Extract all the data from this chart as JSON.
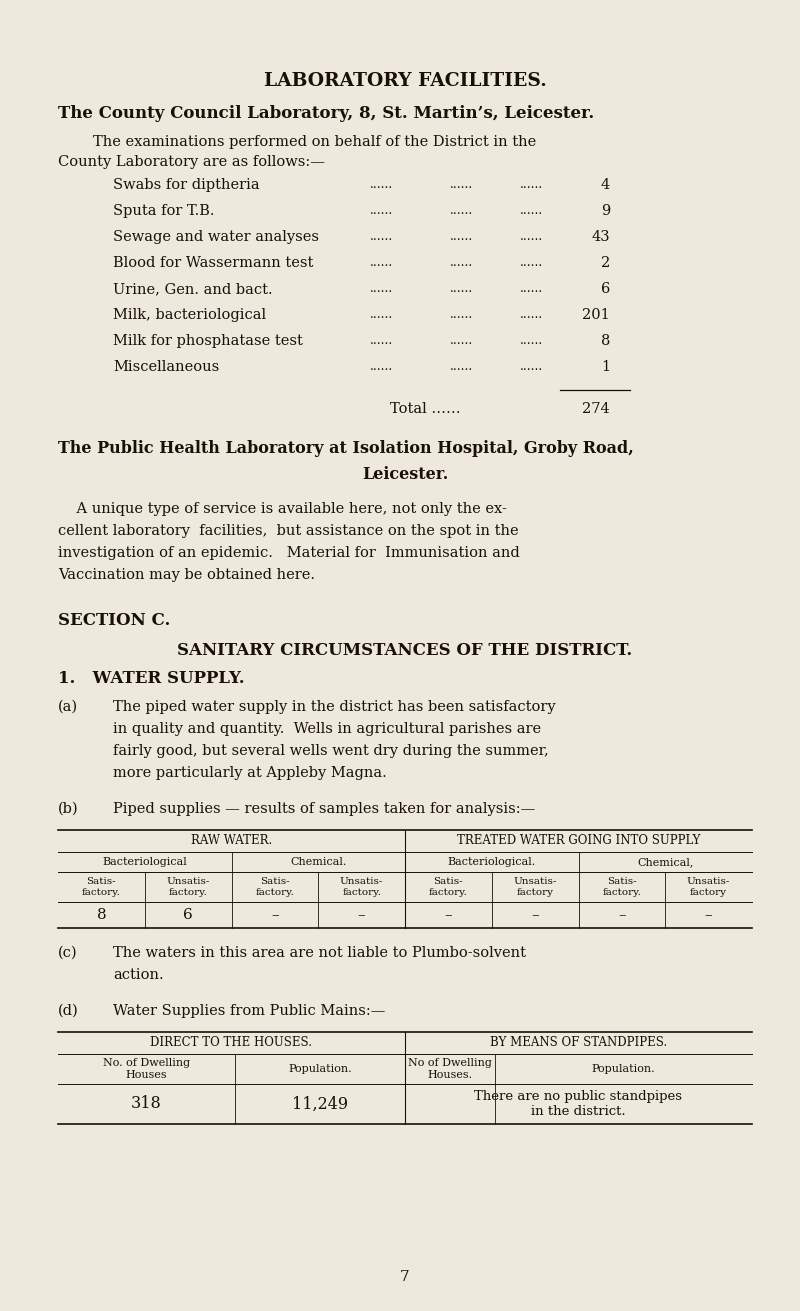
{
  "bg_color": "#ede9dd",
  "text_color": "#1a1008",
  "page_width": 8.0,
  "page_height": 13.11,
  "dpi": 100,
  "title": "LABORATORY FACILITIES.",
  "subtitle": "The County Council Laboratory, 8, St. Martin’s, Leicester.",
  "intro_line1": "The examinations performed on behalf of the District in the",
  "intro_line2": "County Laboratory are as follows:—",
  "lab_items": [
    [
      "Swabs for diptheria",
      "4"
    ],
    [
      "Sputa for T.B.",
      "9"
    ],
    [
      "Sewage and water analyses",
      "43"
    ],
    [
      "Blood for Wassermann test",
      "2"
    ],
    [
      "Urine, Gen. and bact.",
      "6"
    ],
    [
      "Milk, bacteriological",
      "201"
    ],
    [
      "Milk for phosphatase test",
      "8"
    ],
    [
      "Miscellaneous",
      "1"
    ]
  ],
  "total_label": "Total ……",
  "total_value": "274",
  "public_health_heading1": "The Public Health Laboratory at Isolation Hospital, Groby Road,",
  "public_health_heading2": "Leicester.",
  "public_health_para_lines": [
    "    A unique type of service is available here, not only the ex-",
    "cellent laboratory  facilities,  but assistance on the spot in the",
    "investigation of an epidemic.   Material for  Immunisation and",
    "Vaccination may be obtained here."
  ],
  "section_c": "SECTION C.",
  "sanitary": "SANITARY CIRCUMSTANCES OF THE DISTRICT.",
  "water_supply": "1.   WATER SUPPLY.",
  "para_a_label": "(a)",
  "para_a_lines": [
    "The piped water supply in the district has been satisfactory",
    "in quality and quantity.  Wells in agricultural parishes are",
    "fairly good, but several wells went dry during the summer,",
    "more particularly at Appleby Magna."
  ],
  "para_b_label": "(b)",
  "para_b_text": "Piped supplies — results of samples taken for analysis:—",
  "table1_header_left": "RAW WATER.",
  "table1_header_right": "TREATED WATER GOING INTO SUPPLY",
  "table1_row2": [
    "Bacteriological",
    "Chemical.",
    "Bacteriological.",
    "Chemical,"
  ],
  "table1_row3": [
    "Satis-\nfactory.",
    "Unsatis-\nfactory.",
    "Satis-\nfactory.",
    "Unsatis-\nfactory.",
    "Satis-\nfactory.",
    "Unsatis-\nfactory",
    "Satis-\nfactory.",
    "Unsatis-\nfactory"
  ],
  "table1_data": [
    "8",
    "6",
    "–",
    "–",
    "–",
    "–",
    "–",
    "–"
  ],
  "para_c_label": "(c)",
  "para_c_lines": [
    "The waters in this area are not liable to Plumbo-solvent",
    "action."
  ],
  "para_d_label": "(d)",
  "para_d_text": "Water Supplies from Public Mains:—",
  "table2_left_header": "DIRECT TO THE HOUSES.",
  "table2_right_header": "BY MEANS OF STANDPIPES.",
  "table2_col1": "No. of Dwelling\nHouses",
  "table2_col2": "Population.",
  "table2_col3": "No of Dwelling\nHouses.",
  "table2_col4": "Population.",
  "table2_val1": "318",
  "table2_val2": "11,249",
  "table2_val3": "There are no public standpipes\nin the district.",
  "page_num": "7",
  "dots": "......",
  "dots4": "...... ...... ...... ......"
}
